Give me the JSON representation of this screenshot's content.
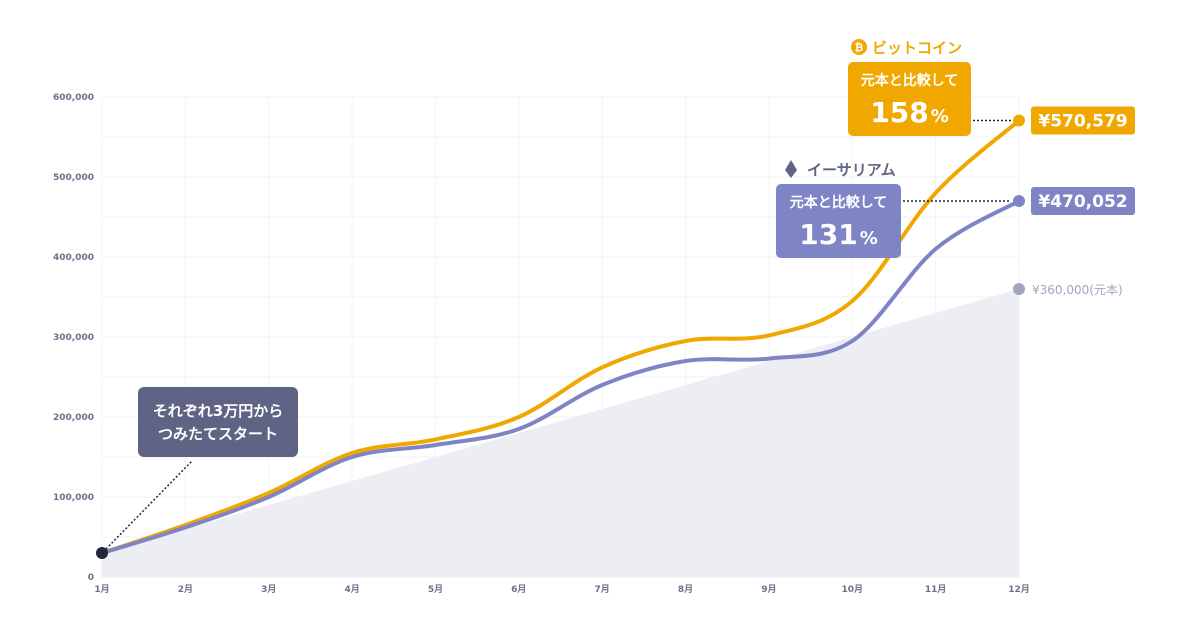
{
  "chart_data": {
    "type": "line",
    "categories": [
      "1月",
      "2月",
      "3月",
      "4月",
      "5月",
      "6月",
      "7月",
      "8月",
      "9月",
      "10月",
      "11月",
      "12月"
    ],
    "y_ticks": [
      "0",
      "100,000",
      "200,000",
      "300,000",
      "400,000",
      "500,000",
      "600,000"
    ],
    "ylim": [
      0,
      600000
    ],
    "grid": true,
    "principal": {
      "values": [
        30000,
        60000,
        90000,
        120000,
        150000,
        180000,
        210000,
        240000,
        270000,
        300000,
        330000,
        360000
      ],
      "label": "¥360,000(元本)",
      "color": "#eceef4",
      "dot_color": "#a2a6bd"
    },
    "series": [
      {
        "name": "ビットコイン",
        "icon": "bitcoin-icon",
        "color": "#f0a800",
        "values": [
          30000,
          65000,
          105000,
          155000,
          172000,
          200000,
          262000,
          295000,
          302000,
          345000,
          480000,
          570579
        ],
        "end_label": "¥570,579",
        "bubble_sub": "元本と比較して",
        "bubble_pct": "158",
        "bubble_unit": "%"
      },
      {
        "name": "イーサリアム",
        "icon": "ethereum-icon",
        "color": "#7f85c4",
        "values": [
          30000,
          62000,
          100000,
          150000,
          165000,
          185000,
          240000,
          270000,
          273000,
          295000,
          410000,
          470052
        ],
        "end_label": "¥470,052",
        "bubble_sub": "元本と比較して",
        "bubble_pct": "131",
        "bubble_unit": "%"
      }
    ],
    "annotation": {
      "lines": [
        "それぞれ3万円から",
        "つみたてスタート"
      ],
      "color": "#5f6485"
    }
  }
}
